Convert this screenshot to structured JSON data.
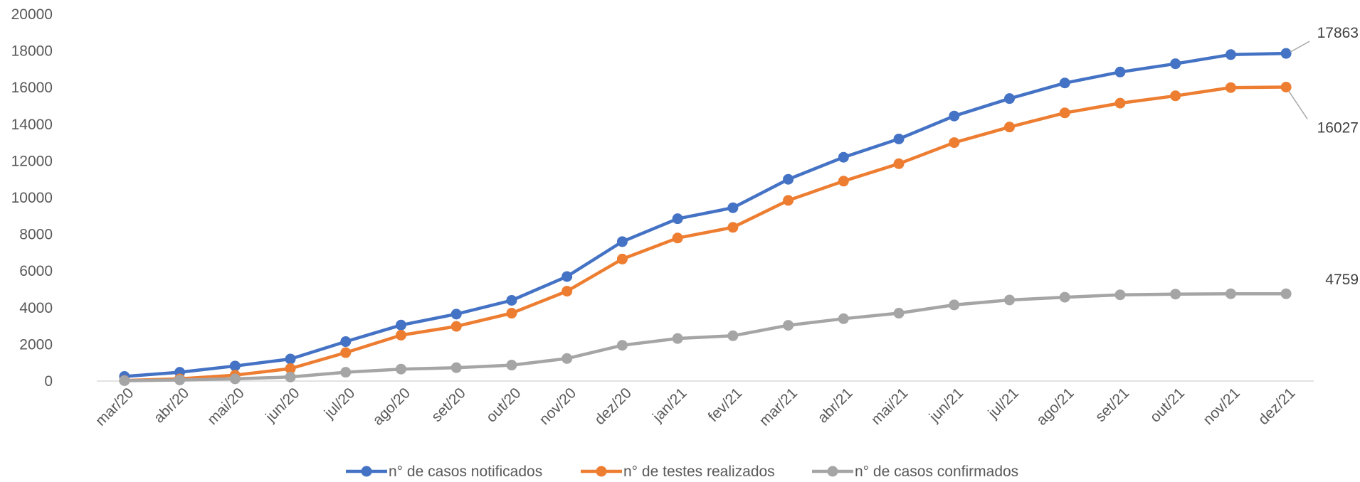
{
  "chart_data": {
    "type": "line",
    "title": "",
    "xlabel": "",
    "ylabel": "",
    "ylim": [
      0,
      20000
    ],
    "yticks": [
      0,
      2000,
      4000,
      6000,
      8000,
      10000,
      12000,
      14000,
      16000,
      18000,
      20000
    ],
    "grid": false,
    "legend_position": "bottom",
    "categories": [
      "mar/20",
      "abr/20",
      "mai/20",
      "jun/20",
      "jul/20",
      "ago/20",
      "set/20",
      "out/20",
      "nov/20",
      "dez/20",
      "jan/21",
      "fev/21",
      "mar/21",
      "abr/21",
      "mai/21",
      "jun/21",
      "jul/21",
      "ago/21",
      "set/21",
      "out/21",
      "nov/21",
      "dez/21"
    ],
    "series": [
      {
        "name": "n° de casos notificados",
        "color": "#4472C4",
        "values": [
          250,
          480,
          820,
          1200,
          2150,
          3050,
          3650,
          4400,
          5700,
          7600,
          8850,
          9450,
          11000,
          12200,
          13200,
          14450,
          15400,
          16250,
          16850,
          17300,
          17800,
          17863
        ],
        "end_label": "17863"
      },
      {
        "name": "n° de testes realizados",
        "color": "#ED7D31",
        "values": [
          30,
          120,
          320,
          680,
          1550,
          2500,
          2980,
          3700,
          4900,
          6650,
          7800,
          8380,
          9850,
          10900,
          11850,
          13000,
          13850,
          14620,
          15150,
          15550,
          16000,
          16027
        ],
        "end_label": "16027"
      },
      {
        "name": "n° de casos confirmados",
        "color": "#A5A5A5",
        "values": [
          20,
          60,
          120,
          220,
          480,
          650,
          730,
          870,
          1230,
          1950,
          2320,
          2470,
          3040,
          3400,
          3700,
          4150,
          4420,
          4570,
          4700,
          4740,
          4760,
          4759
        ],
        "end_label": "4759"
      }
    ]
  }
}
